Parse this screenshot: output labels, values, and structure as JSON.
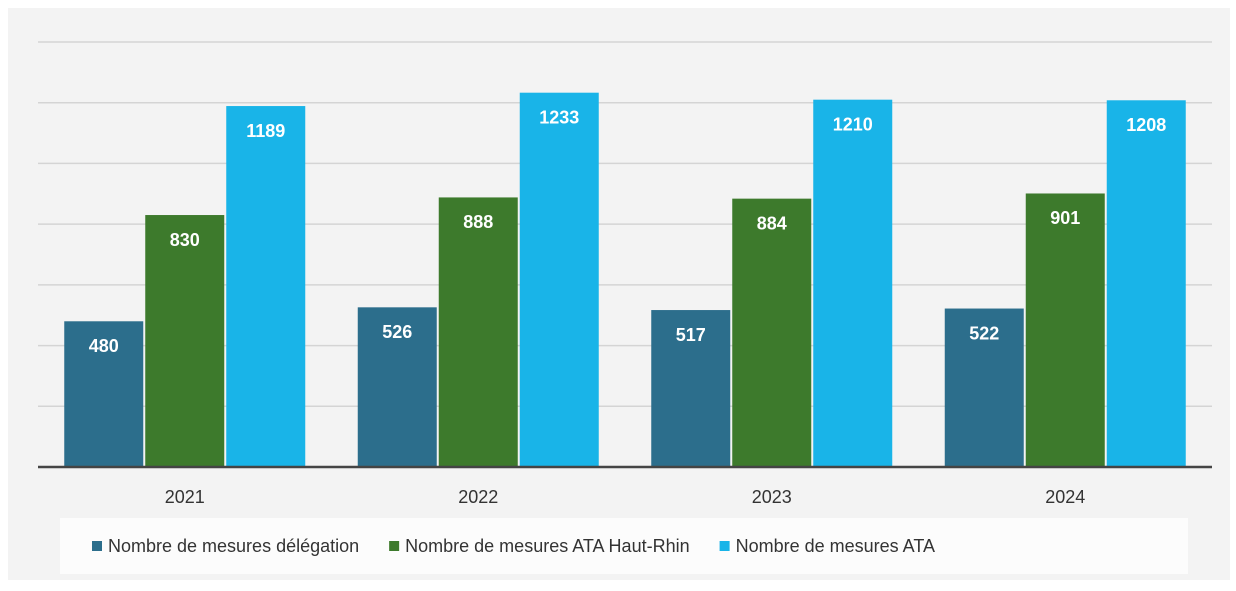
{
  "chart_data": {
    "type": "bar",
    "categories": [
      "2021",
      "2022",
      "2023",
      "2024"
    ],
    "series": [
      {
        "name": "Nombre de mesures délégation",
        "color": "#2c6e8c",
        "values": [
          480,
          526,
          517,
          522
        ]
      },
      {
        "name": "Nombre de mesures ATA Haut-Rhin",
        "color": "#3d7a2c",
        "values": [
          830,
          888,
          884,
          901
        ]
      },
      {
        "name": "Nombre de mesures ATA",
        "color": "#19b4e8",
        "values": [
          1189,
          1233,
          1210,
          1208
        ]
      }
    ],
    "ylim": [
      0,
      1400
    ],
    "yticks": [
      0,
      200,
      400,
      600,
      800,
      1000,
      1200,
      1400
    ],
    "grid": true,
    "legend": "bottom"
  }
}
